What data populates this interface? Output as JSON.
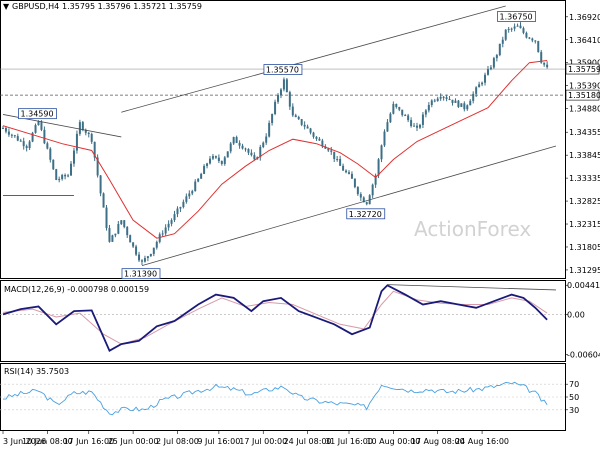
{
  "header": {
    "symbol": "GBPUSD,H4",
    "ohlc": "1.35795 1.35796 1.35721 1.35759"
  },
  "watermark": "ActionForex",
  "colors": {
    "candle": "#3d6f86",
    "ma": "#e03030",
    "channel": "#4a4a4a",
    "price_tag_bg": "#ffffff",
    "macd": "#1a1a7a",
    "signal": "#d89aa8",
    "rsi": "#4aa0e0",
    "grid": "#c8c8c8"
  },
  "chart_data": [
    {
      "type": "candlestick",
      "name": "price",
      "title": "GBPUSD,H4",
      "ylim": [
        1.3116,
        1.3716
      ],
      "yticks": [
        "1.36920",
        "1.36410",
        "1.35900",
        "1.35390",
        "1.34880",
        "1.34355",
        "1.33845",
        "1.33335",
        "1.32825",
        "1.32315",
        "1.31805",
        "1.31295"
      ],
      "last_price": "1.35759",
      "level_line": "1.35180",
      "labels": [
        {
          "text": "1.34590",
          "value": 1.3459,
          "bar": 12
        },
        {
          "text": "1.35570",
          "value": 1.3557,
          "bar": 95
        },
        {
          "text": "1.36750",
          "value": 1.3675,
          "bar": 174
        },
        {
          "text": "1.32720",
          "value": 1.3272,
          "bar": 123
        },
        {
          "text": "1.31390",
          "value": 1.3139,
          "bar": 47
        }
      ],
      "ma_period_note": "",
      "anchor_close": [
        [
          0,
          1.3445
        ],
        [
          8,
          1.3405
        ],
        [
          12,
          1.3459
        ],
        [
          18,
          1.333
        ],
        [
          22,
          1.334
        ],
        [
          26,
          1.3455
        ],
        [
          30,
          1.342
        ],
        [
          33,
          1.33
        ],
        [
          36,
          1.319
        ],
        [
          40,
          1.324
        ],
        [
          44,
          1.318
        ],
        [
          47,
          1.3145
        ],
        [
          50,
          1.317
        ],
        [
          54,
          1.3215
        ],
        [
          58,
          1.325
        ],
        [
          62,
          1.329
        ],
        [
          66,
          1.333
        ],
        [
          70,
          1.338
        ],
        [
          74,
          1.337
        ],
        [
          78,
          1.342
        ],
        [
          82,
          1.34
        ],
        [
          85,
          1.337
        ],
        [
          89,
          1.343
        ],
        [
          93,
          1.352
        ],
        [
          95,
          1.355
        ],
        [
          98,
          1.347
        ],
        [
          102,
          1.345
        ],
        [
          106,
          1.342
        ],
        [
          110,
          1.34
        ],
        [
          114,
          1.336
        ],
        [
          118,
          1.333
        ],
        [
          121,
          1.329
        ],
        [
          123,
          1.328
        ],
        [
          126,
          1.334
        ],
        [
          129,
          1.344
        ],
        [
          132,
          1.3495
        ],
        [
          136,
          1.347
        ],
        [
          140,
          1.344
        ],
        [
          144,
          1.35
        ],
        [
          148,
          1.352
        ],
        [
          152,
          1.3505
        ],
        [
          156,
          1.349
        ],
        [
          160,
          1.353
        ],
        [
          164,
          1.357
        ],
        [
          167,
          1.361
        ],
        [
          170,
          1.366
        ],
        [
          174,
          1.367
        ],
        [
          177,
          1.365
        ],
        [
          180,
          1.364
        ],
        [
          182,
          1.3595
        ],
        [
          184,
          1.3576
        ]
      ],
      "ma_points": [
        [
          0,
          1.345
        ],
        [
          10,
          1.343
        ],
        [
          20,
          1.341
        ],
        [
          30,
          1.3395
        ],
        [
          36,
          1.333
        ],
        [
          44,
          1.324
        ],
        [
          52,
          1.32
        ],
        [
          58,
          1.321
        ],
        [
          66,
          1.326
        ],
        [
          74,
          1.332
        ],
        [
          82,
          1.336
        ],
        [
          90,
          1.3395
        ],
        [
          98,
          1.342
        ],
        [
          106,
          1.341
        ],
        [
          114,
          1.339
        ],
        [
          120,
          1.3365
        ],
        [
          126,
          1.3335
        ],
        [
          132,
          1.3375
        ],
        [
          140,
          1.3415
        ],
        [
          148,
          1.344
        ],
        [
          156,
          1.3465
        ],
        [
          164,
          1.349
        ],
        [
          172,
          1.355
        ],
        [
          178,
          1.359
        ],
        [
          184,
          1.3595
        ]
      ],
      "channel_upper": [
        [
          40,
          1.348
        ],
        [
          170,
          1.3716
        ]
      ],
      "channel_lower": [
        [
          47,
          1.3139
        ],
        [
          187,
          1.3405
        ]
      ],
      "descending_line": [
        [
          0,
          1.3475
        ],
        [
          40,
          1.3425
        ]
      ],
      "support_line": [
        [
          0,
          1.3295
        ],
        [
          24,
          1.3295
        ]
      ]
    },
    {
      "type": "line",
      "name": "MACD(12,26,9)",
      "title": "MACD(12,26,9) -0.000798 0.000159",
      "ylim": [
        -0.0066,
        0.0046
      ],
      "yticks": [
        "0.004411",
        "0.00",
        "-0.006043"
      ],
      "series": [
        {
          "name": "MACD",
          "points": [
            [
              0,
              0.0
            ],
            [
              6,
              0.0008
            ],
            [
              12,
              0.0012
            ],
            [
              18,
              -0.0015
            ],
            [
              24,
              0.0005
            ],
            [
              30,
              0.0006
            ],
            [
              36,
              -0.0055
            ],
            [
              40,
              -0.0045
            ],
            [
              46,
              -0.004
            ],
            [
              52,
              -0.0018
            ],
            [
              58,
              -0.001
            ],
            [
              66,
              0.0015
            ],
            [
              72,
              0.003
            ],
            [
              78,
              0.0025
            ],
            [
              84,
              0.0005
            ],
            [
              88,
              0.002
            ],
            [
              94,
              0.0025
            ],
            [
              100,
              0.0005
            ],
            [
              106,
              -0.0005
            ],
            [
              112,
              -0.0015
            ],
            [
              118,
              -0.003
            ],
            [
              124,
              -0.002
            ],
            [
              128,
              0.0035
            ],
            [
              130,
              0.0044
            ],
            [
              136,
              0.003
            ],
            [
              142,
              0.0015
            ],
            [
              148,
              0.002
            ],
            [
              154,
              0.0015
            ],
            [
              160,
              0.001
            ],
            [
              166,
              0.002
            ],
            [
              172,
              0.003
            ],
            [
              176,
              0.0025
            ],
            [
              180,
              0.001
            ],
            [
              184,
              -0.0008
            ]
          ]
        },
        {
          "name": "Signal",
          "points": [
            [
              0,
              0.0003
            ],
            [
              10,
              0.0008
            ],
            [
              18,
              -0.0004
            ],
            [
              26,
              0.0002
            ],
            [
              34,
              -0.003
            ],
            [
              40,
              -0.0045
            ],
            [
              48,
              -0.0035
            ],
            [
              56,
              -0.0015
            ],
            [
              66,
              0.0008
            ],
            [
              74,
              0.0025
            ],
            [
              82,
              0.0012
            ],
            [
              90,
              0.0018
            ],
            [
              98,
              0.0015
            ],
            [
              106,
              0.0
            ],
            [
              114,
              -0.0015
            ],
            [
              122,
              -0.0022
            ],
            [
              128,
              0.0015
            ],
            [
              132,
              0.0035
            ],
            [
              140,
              0.0022
            ],
            [
              148,
              0.0017
            ],
            [
              156,
              0.0015
            ],
            [
              164,
              0.0015
            ],
            [
              172,
              0.0025
            ],
            [
              178,
              0.002
            ],
            [
              184,
              0.0002
            ]
          ]
        }
      ],
      "divergence_line": [
        [
          130,
          0.0045
        ],
        [
          187,
          0.0037
        ]
      ]
    },
    {
      "type": "line",
      "name": "RSI(14)",
      "title": "RSI(14) 35.7503",
      "ylim": [
        0,
        100
      ],
      "yticks": [
        "70",
        "50",
        "30"
      ],
      "series": [
        {
          "name": "RSI",
          "points": [
            [
              0,
              48
            ],
            [
              6,
              55
            ],
            [
              12,
              60
            ],
            [
              18,
              38
            ],
            [
              24,
              56
            ],
            [
              30,
              58
            ],
            [
              36,
              25
            ],
            [
              42,
              32
            ],
            [
              48,
              30
            ],
            [
              54,
              45
            ],
            [
              60,
              52
            ],
            [
              66,
              60
            ],
            [
              72,
              66
            ],
            [
              78,
              62
            ],
            [
              84,
              54
            ],
            [
              90,
              62
            ],
            [
              95,
              66
            ],
            [
              100,
              50
            ],
            [
              106,
              44
            ],
            [
              112,
              40
            ],
            [
              118,
              38
            ],
            [
              123,
              34
            ],
            [
              128,
              70
            ],
            [
              132,
              66
            ],
            [
              138,
              60
            ],
            [
              144,
              62
            ],
            [
              150,
              58
            ],
            [
              156,
              60
            ],
            [
              162,
              63
            ],
            [
              168,
              68
            ],
            [
              172,
              72
            ],
            [
              176,
              66
            ],
            [
              180,
              56
            ],
            [
              184,
              36
            ]
          ]
        }
      ]
    }
  ],
  "x_axis": {
    "ticks": [
      {
        "label": "3 Jun 2026",
        "bar": 0
      },
      {
        "label": "10 Jun 08:00",
        "bar": 15
      },
      {
        "label": "17 Jun 16:00",
        "bar": 29
      },
      {
        "label": "25 Jun 00:00",
        "bar": 44
      },
      {
        "label": "2 Jul 08:00",
        "bar": 59
      },
      {
        "label": "9 Jul 16:00",
        "bar": 73
      },
      {
        "label": "17 Jul 00:00",
        "bar": 88
      },
      {
        "label": "24 Jul 08:00",
        "bar": 103
      },
      {
        "label": "31 Jul 16:00",
        "bar": 117
      },
      {
        "label": "10 Aug 00:00",
        "bar": 132
      },
      {
        "label": "17 Aug 08:00",
        "bar": 147
      },
      {
        "label": "24 Aug 16:00",
        "bar": 162
      }
    ]
  }
}
